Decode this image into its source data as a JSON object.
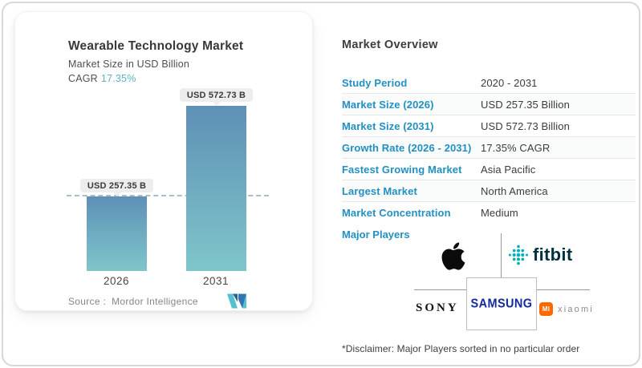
{
  "colors": {
    "accent_blue": "#2190c2",
    "cagr_teal": "#63b1c2",
    "bar_gradient_top": "#5e90b6",
    "bar_gradient_bottom": "#7fc6ca",
    "reference_line": "#a9bfcb",
    "samsung_blue": "#1428a0",
    "fitbit_teal": "#00b0b9",
    "fitbit_navy": "#00303f",
    "xiaomi_orange": "#ff6900"
  },
  "chart_card": {
    "title": "Wearable Technology Market",
    "subtitle": "Market Size in USD Billion",
    "cagr_label": "CAGR",
    "cagr_value": "17.35%",
    "source_label": "Source :",
    "source_value": "Mordor Intelligence"
  },
  "chart_data": {
    "type": "bar",
    "title": "Wearable Technology Market",
    "ylabel": "Market Size in USD Billion",
    "unit": "USD Billion",
    "categories": [
      "2026",
      "2031"
    ],
    "values": [
      257.35,
      572.73
    ],
    "bar_labels": [
      "USD 257.35 B",
      "USD 572.73 B"
    ],
    "cagr_percent": 17.35,
    "reference_line_value": 257.35,
    "ylim": [
      0,
      600
    ],
    "grid": false,
    "legend": false
  },
  "overview": {
    "heading": "Market Overview",
    "rows": [
      {
        "label": "Study Period",
        "value": "2020 - 2031"
      },
      {
        "label": "Market Size (2026)",
        "value": "USD 257.35 Billion"
      },
      {
        "label": "Market Size (2031)",
        "value": "USD 572.73 Billion"
      },
      {
        "label": "Growth Rate (2026 - 2031)",
        "value": "17.35% CAGR"
      },
      {
        "label": "Fastest Growing Market",
        "value": "Asia Pacific"
      },
      {
        "label": "Largest Market",
        "value": "North America"
      },
      {
        "label": "Market Concentration",
        "value": "Medium"
      }
    ],
    "major_players_label": "Major Players",
    "players": {
      "apple": "Apple",
      "fitbit_wordmark": "fitbit",
      "sony_wordmark": "SONY",
      "samsung_wordmark": "SAMSUNG",
      "xiaomi_badge": "MI",
      "xiaomi_wordmark": "xiaomi"
    },
    "disclaimer": "*Disclaimer: Major Players sorted in no particular order"
  }
}
